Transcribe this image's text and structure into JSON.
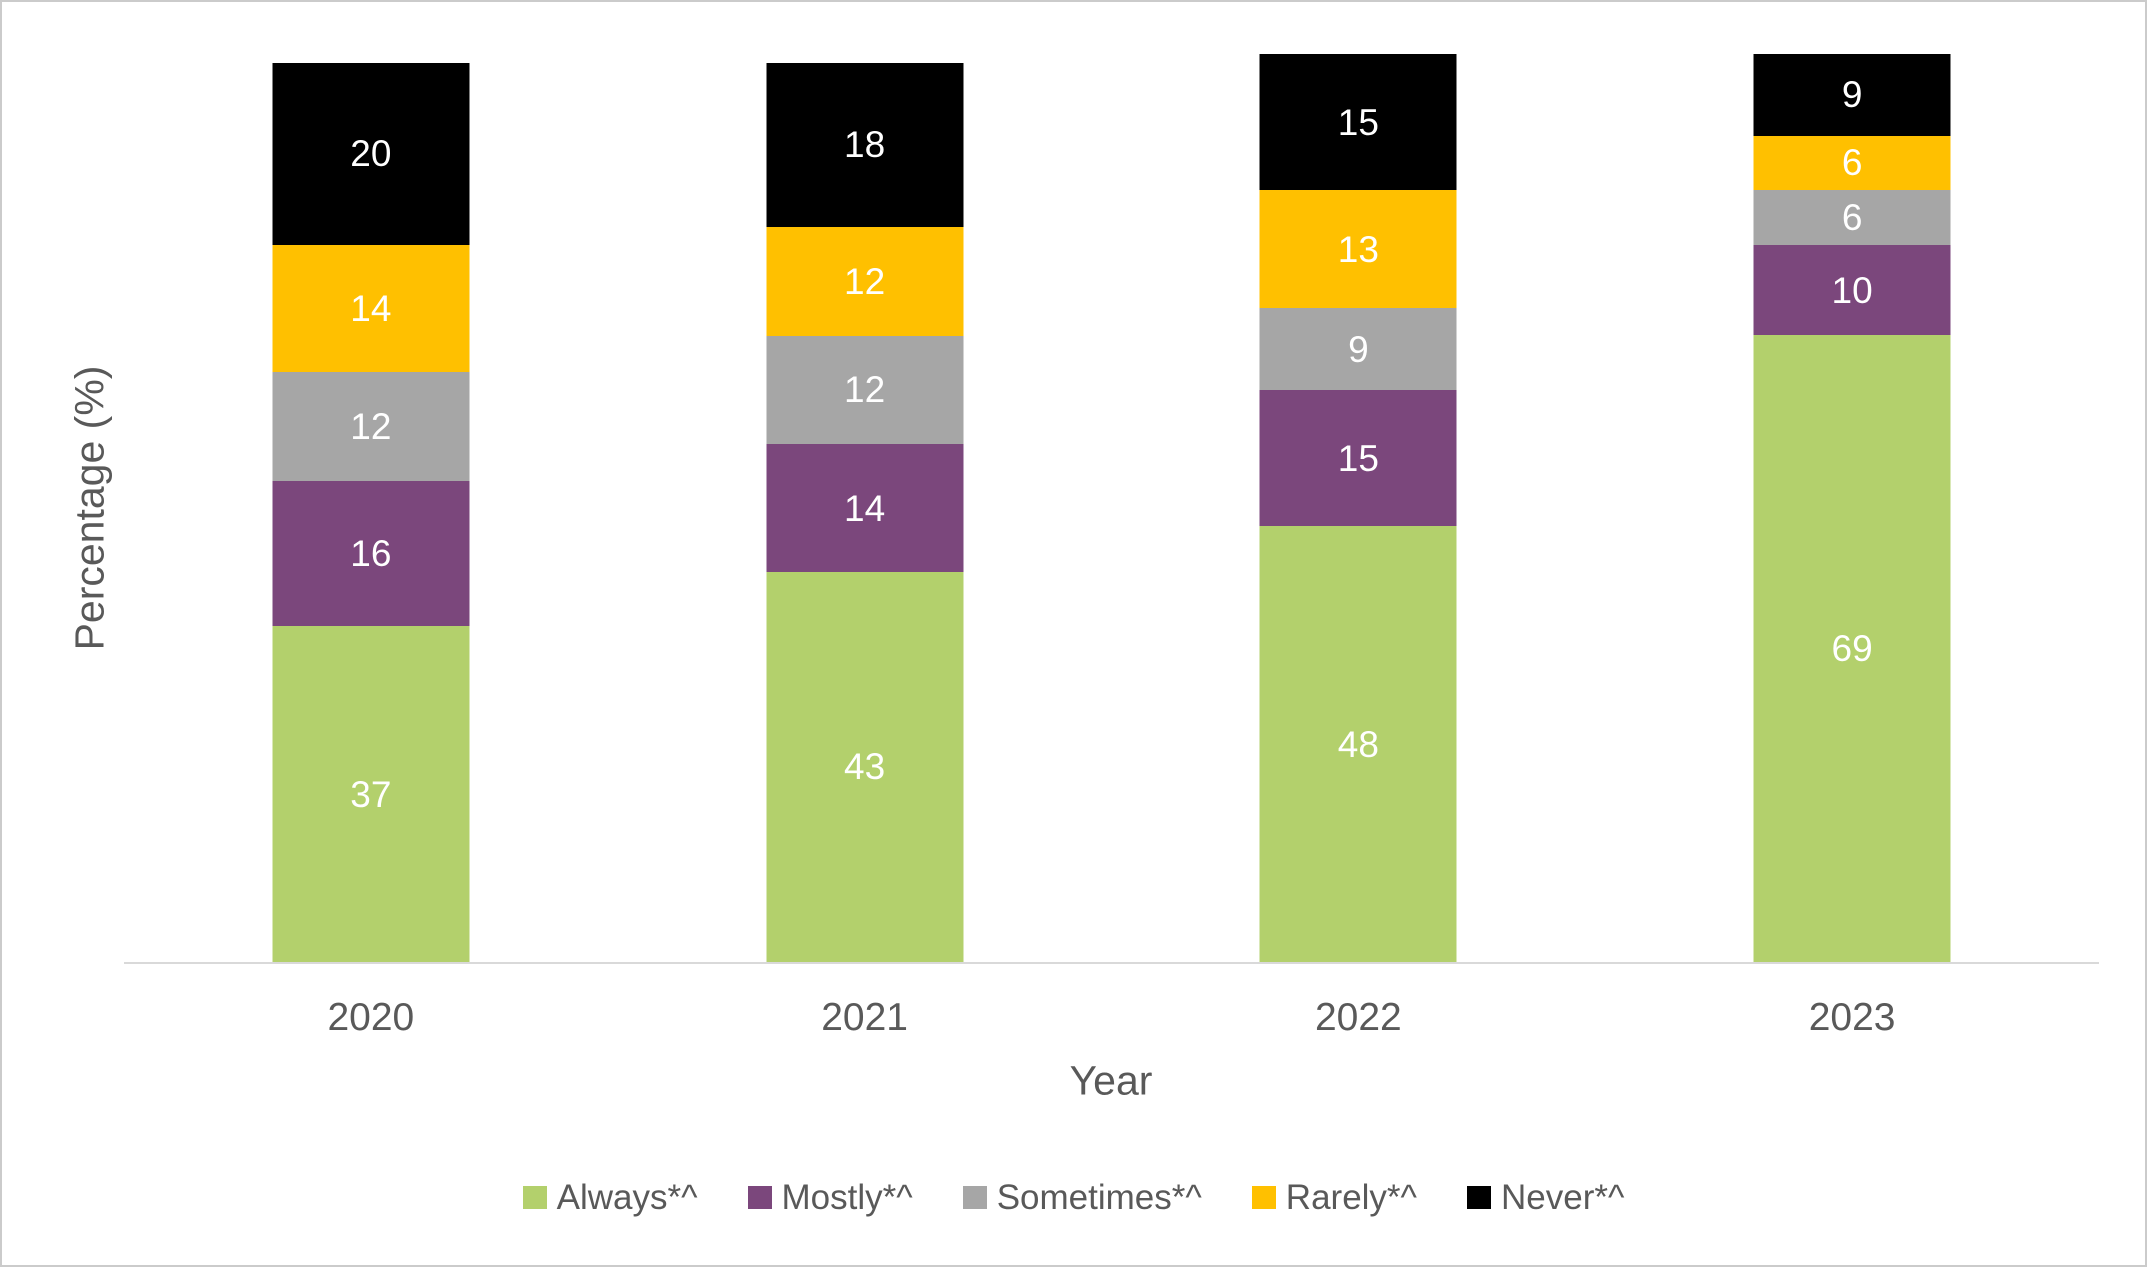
{
  "chart_data": {
    "type": "bar",
    "stacked": true,
    "orientation": "vertical",
    "title": "",
    "xlabel": "Year",
    "ylabel": "Percentage (%)",
    "categories": [
      "2020",
      "2021",
      "2022",
      "2023"
    ],
    "series": [
      {
        "name": "Always*^",
        "color": "#b3d06c",
        "values": [
          37,
          43,
          48,
          69
        ]
      },
      {
        "name": "Mostly*^",
        "color": "#7b477c",
        "values": [
          16,
          14,
          15,
          10
        ]
      },
      {
        "name": "Sometimes*^",
        "color": "#a6a6a6",
        "values": [
          12,
          12,
          9,
          6
        ]
      },
      {
        "name": "Rarely*^",
        "color": "#ffc000",
        "values": [
          14,
          12,
          13,
          6
        ]
      },
      {
        "name": "Never*^",
        "color": "#000000",
        "values": [
          20,
          18,
          15,
          9
        ]
      }
    ],
    "ylim": [
      0,
      100
    ],
    "y_axis_ticks_visible": false,
    "grid": false,
    "legend_position": "bottom",
    "value_labels": {
      "position": "inside-center",
      "color": "#ffffff"
    }
  },
  "styles": {
    "axis_line_color": "#d9d9d9",
    "text_color": "#595959",
    "frame_border_color": "#cbcbcb",
    "background": "#ffffff"
  }
}
